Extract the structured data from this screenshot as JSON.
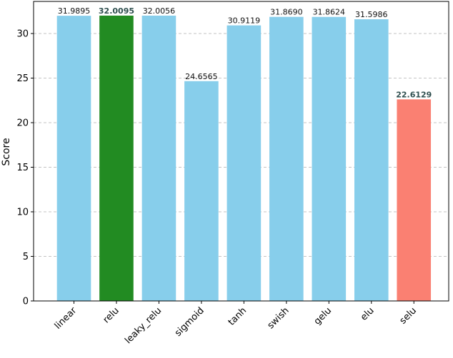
{
  "chart_data": {
    "type": "bar",
    "title": "",
    "xlabel": "",
    "ylabel": "Score",
    "ylim": [
      0,
      33.6
    ],
    "yticks": [
      0,
      5,
      10,
      15,
      20,
      25,
      30
    ],
    "grid": {
      "y": true,
      "style": "dashed"
    },
    "categories": [
      "linear",
      "relu",
      "leaky_relu",
      "sigmoid",
      "tanh",
      "swish",
      "gelu",
      "elu",
      "selu"
    ],
    "values": [
      31.9895,
      32.0095,
      32.0056,
      24.6565,
      30.9119,
      31.869,
      31.8624,
      31.5986,
      22.6129
    ],
    "value_labels": [
      "31.9895",
      "32.0095",
      "32.0056",
      "24.6565",
      "30.9119",
      "31.8690",
      "31.8624",
      "31.5986",
      "22.6129"
    ],
    "bar_colors": [
      "#87ceeb",
      "#228b22",
      "#87ceeb",
      "#87ceeb",
      "#87ceeb",
      "#87ceeb",
      "#87ceeb",
      "#87ceeb",
      "#fa8072"
    ],
    "emphasized": [
      false,
      true,
      false,
      false,
      false,
      false,
      false,
      false,
      true
    ]
  }
}
